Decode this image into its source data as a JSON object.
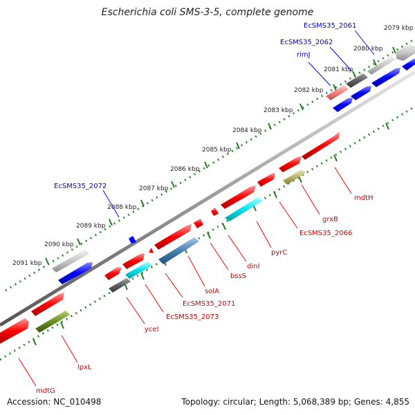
{
  "header": {
    "title": "Escherichia coli SMS-3-5, complete genome"
  },
  "footer": {
    "accession": "Accession: NC_010498",
    "summary": "Topology: circular; Length: 5,068,389 bp; Genes: 4,855"
  },
  "colors": {
    "forward_gene": "#ff0000",
    "reverse_gene": "#0000ff",
    "forward_label": "#cc0000",
    "reverse_label": "#0000cc",
    "backbone": "#888888",
    "dots": "#2e8b2e"
  },
  "ruler": {
    "unit": "kbp",
    "ticks": [
      "2079 kbp",
      "2080 kbp",
      "2081 kbp",
      "2082 kbp",
      "2083 kbp",
      "2084 kbp",
      "2085 kbp",
      "2086 kbp",
      "2087 kbp",
      "2088 kbp",
      "2089 kbp",
      "2090 kbp",
      "2091 kbp"
    ]
  },
  "genes_top": [
    {
      "label": "EcSMS35_2061",
      "color": "#0000cc"
    },
    {
      "label": "EcSMS35_2062",
      "color": "#0000cc"
    },
    {
      "label": "rimJ",
      "color": "#0000cc"
    },
    {
      "label": "EcSMS35_2072",
      "color": "#0000cc"
    }
  ],
  "genes_bottom": [
    {
      "label": "mdtH",
      "color": "#cc0000"
    },
    {
      "label": "grxB",
      "color": "#cc0000"
    },
    {
      "label": "EcSMS35_2066",
      "color": "#cc0000"
    },
    {
      "label": "pyrC",
      "color": "#cc0000"
    },
    {
      "label": "dinI",
      "color": "#cc0000"
    },
    {
      "label": "bssS",
      "color": "#cc0000"
    },
    {
      "label": "solA",
      "color": "#cc0000"
    },
    {
      "label": "EcSMS35_2071",
      "color": "#cc0000"
    },
    {
      "label": "EcSMS35_2073",
      "color": "#cc0000"
    },
    {
      "label": "ycel",
      "color": "#cc0000"
    },
    {
      "label": "lpxL",
      "color": "#cc0000"
    },
    {
      "label": "mdtG",
      "color": "#cc0000"
    }
  ]
}
